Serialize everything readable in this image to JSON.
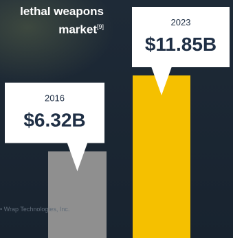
{
  "title": {
    "line1": "lethal weapons",
    "line2": "market",
    "ref": "[9]"
  },
  "credit": "• Wrap Technologies, Inc.",
  "chart_data": {
    "type": "bar",
    "categories": [
      "2016",
      "2023"
    ],
    "values": [
      6.32,
      11.85
    ],
    "value_labels": [
      "$6.32B",
      "$11.85B"
    ],
    "colors": [
      "#8f8f8f",
      "#f5c000"
    ],
    "callout_color": "#ffffff",
    "label_color": "#1f2f45",
    "title": "",
    "xlabel": "",
    "ylabel": "",
    "grid": false
  }
}
